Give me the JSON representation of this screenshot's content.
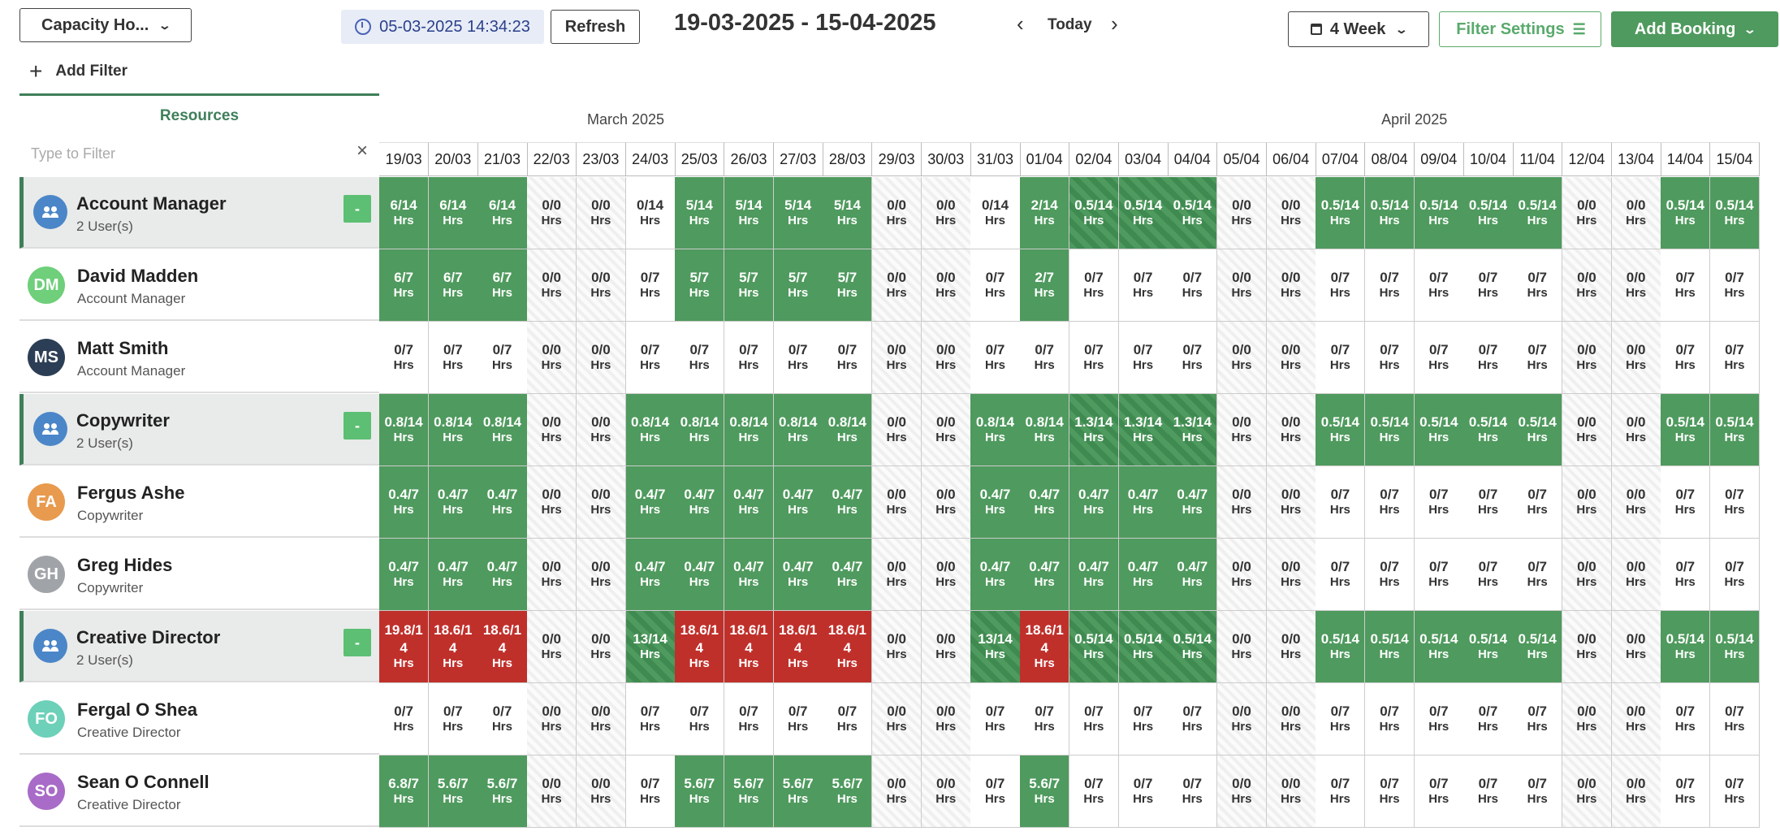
{
  "toolbar": {
    "view_label": "Capacity Ho...",
    "timestamp": "05-03-2025 14:34:23",
    "refresh_label": "Refresh",
    "date_range": "19-03-2025 - 15-04-2025",
    "today_label": "Today",
    "week_label": "4 Week",
    "filter_settings_label": "Filter Settings",
    "add_booking_label": "Add Booking",
    "add_filter_label": "Add Filter"
  },
  "resources": {
    "title": "Resources",
    "filter_placeholder": "Type to Filter"
  },
  "months": [
    "March 2025",
    "April 2025"
  ],
  "days": [
    "19/03",
    "20/03",
    "21/03",
    "22/03",
    "23/03",
    "24/03",
    "25/03",
    "26/03",
    "27/03",
    "28/03",
    "29/03",
    "30/03",
    "31/03",
    "01/04",
    "02/04",
    "03/04",
    "04/04",
    "05/04",
    "06/04",
    "07/04",
    "08/04",
    "09/04",
    "10/04",
    "11/04",
    "12/04",
    "13/04",
    "14/04",
    "15/04"
  ],
  "weekend_days": [
    "22/03",
    "23/03",
    "29/03",
    "30/03",
    "05/04",
    "06/04",
    "12/04",
    "13/04"
  ],
  "unit": "Hrs",
  "rows": [
    {
      "type": "group",
      "name": "Account Manager",
      "sub": "2 User(s)",
      "toggle": "-",
      "cells": [
        [
          "6/14",
          "green"
        ],
        [
          "6/14",
          "green"
        ],
        [
          "6/14",
          "green"
        ],
        [
          "0/0",
          "wk"
        ],
        [
          "0/0",
          "wk"
        ],
        [
          "0/14",
          "white"
        ],
        [
          "5/14",
          "green"
        ],
        [
          "5/14",
          "green"
        ],
        [
          "5/14",
          "green"
        ],
        [
          "5/14",
          "green"
        ],
        [
          "0/0",
          "wk"
        ],
        [
          "0/0",
          "wk"
        ],
        [
          "0/14",
          "white"
        ],
        [
          "2/14",
          "green"
        ],
        [
          "0.5/14",
          "gstripe"
        ],
        [
          "0.5/14",
          "gstripe"
        ],
        [
          "0.5/14",
          "gstripe"
        ],
        [
          "0/0",
          "wk"
        ],
        [
          "0/0",
          "wk"
        ],
        [
          "0.5/14",
          "green"
        ],
        [
          "0.5/14",
          "green"
        ],
        [
          "0.5/14",
          "green"
        ],
        [
          "0.5/14",
          "green"
        ],
        [
          "0.5/14",
          "green"
        ],
        [
          "0/0",
          "wk"
        ],
        [
          "0/0",
          "wk"
        ],
        [
          "0.5/14",
          "green"
        ],
        [
          "0.5/14",
          "green"
        ]
      ]
    },
    {
      "type": "user",
      "initials": "DM",
      "color": "#6fcf7a",
      "name": "David Madden",
      "sub": "Account Manager",
      "cells": [
        [
          "6/7",
          "green"
        ],
        [
          "6/7",
          "green"
        ],
        [
          "6/7",
          "green"
        ],
        [
          "0/0",
          "wk"
        ],
        [
          "0/0",
          "wk"
        ],
        [
          "0/7",
          "white"
        ],
        [
          "5/7",
          "green"
        ],
        [
          "5/7",
          "green"
        ],
        [
          "5/7",
          "green"
        ],
        [
          "5/7",
          "green"
        ],
        [
          "0/0",
          "wk"
        ],
        [
          "0/0",
          "wk"
        ],
        [
          "0/7",
          "white"
        ],
        [
          "2/7",
          "green"
        ],
        [
          "0/7",
          "white"
        ],
        [
          "0/7",
          "white"
        ],
        [
          "0/7",
          "white"
        ],
        [
          "0/0",
          "wk"
        ],
        [
          "0/0",
          "wk"
        ],
        [
          "0/7",
          "white"
        ],
        [
          "0/7",
          "white"
        ],
        [
          "0/7",
          "white"
        ],
        [
          "0/7",
          "white"
        ],
        [
          "0/7",
          "white"
        ],
        [
          "0/0",
          "wk"
        ],
        [
          "0/0",
          "wk"
        ],
        [
          "0/7",
          "white"
        ],
        [
          "0/7",
          "white"
        ]
      ]
    },
    {
      "type": "user",
      "initials": "MS",
      "color": "#2c3e55",
      "name": "Matt Smith",
      "sub": "Account Manager",
      "cells": [
        [
          "0/7",
          "white"
        ],
        [
          "0/7",
          "white"
        ],
        [
          "0/7",
          "white"
        ],
        [
          "0/0",
          "wk"
        ],
        [
          "0/0",
          "wk"
        ],
        [
          "0/7",
          "white"
        ],
        [
          "0/7",
          "white"
        ],
        [
          "0/7",
          "white"
        ],
        [
          "0/7",
          "white"
        ],
        [
          "0/7",
          "white"
        ],
        [
          "0/0",
          "wk"
        ],
        [
          "0/0",
          "wk"
        ],
        [
          "0/7",
          "white"
        ],
        [
          "0/7",
          "white"
        ],
        [
          "0/7",
          "white"
        ],
        [
          "0/7",
          "white"
        ],
        [
          "0/7",
          "white"
        ],
        [
          "0/0",
          "wk"
        ],
        [
          "0/0",
          "wk"
        ],
        [
          "0/7",
          "white"
        ],
        [
          "0/7",
          "white"
        ],
        [
          "0/7",
          "white"
        ],
        [
          "0/7",
          "white"
        ],
        [
          "0/7",
          "white"
        ],
        [
          "0/0",
          "wk"
        ],
        [
          "0/0",
          "wk"
        ],
        [
          "0/7",
          "white"
        ],
        [
          "0/7",
          "white"
        ]
      ]
    },
    {
      "type": "group",
      "name": "Copywriter",
      "sub": "2 User(s)",
      "toggle": "-",
      "cells": [
        [
          "0.8/14",
          "green"
        ],
        [
          "0.8/14",
          "green"
        ],
        [
          "0.8/14",
          "green"
        ],
        [
          "0/0",
          "wk"
        ],
        [
          "0/0",
          "wk"
        ],
        [
          "0.8/14",
          "green"
        ],
        [
          "0.8/14",
          "green"
        ],
        [
          "0.8/14",
          "green"
        ],
        [
          "0.8/14",
          "green"
        ],
        [
          "0.8/14",
          "green"
        ],
        [
          "0/0",
          "wk"
        ],
        [
          "0/0",
          "wk"
        ],
        [
          "0.8/14",
          "green"
        ],
        [
          "0.8/14",
          "green"
        ],
        [
          "1.3/14",
          "gstripe"
        ],
        [
          "1.3/14",
          "gstripe"
        ],
        [
          "1.3/14",
          "gstripe"
        ],
        [
          "0/0",
          "wk"
        ],
        [
          "0/0",
          "wk"
        ],
        [
          "0.5/14",
          "green"
        ],
        [
          "0.5/14",
          "green"
        ],
        [
          "0.5/14",
          "green"
        ],
        [
          "0.5/14",
          "green"
        ],
        [
          "0.5/14",
          "green"
        ],
        [
          "0/0",
          "wk"
        ],
        [
          "0/0",
          "wk"
        ],
        [
          "0.5/14",
          "green"
        ],
        [
          "0.5/14",
          "green"
        ]
      ]
    },
    {
      "type": "user",
      "initials": "FA",
      "color": "#e89a4e",
      "name": "Fergus Ashe",
      "sub": "Copywriter",
      "cells": [
        [
          "0.4/7",
          "green"
        ],
        [
          "0.4/7",
          "green"
        ],
        [
          "0.4/7",
          "green"
        ],
        [
          "0/0",
          "wk"
        ],
        [
          "0/0",
          "wk"
        ],
        [
          "0.4/7",
          "green"
        ],
        [
          "0.4/7",
          "green"
        ],
        [
          "0.4/7",
          "green"
        ],
        [
          "0.4/7",
          "green"
        ],
        [
          "0.4/7",
          "green"
        ],
        [
          "0/0",
          "wk"
        ],
        [
          "0/0",
          "wk"
        ],
        [
          "0.4/7",
          "green"
        ],
        [
          "0.4/7",
          "green"
        ],
        [
          "0.4/7",
          "green"
        ],
        [
          "0.4/7",
          "green"
        ],
        [
          "0.4/7",
          "green"
        ],
        [
          "0/0",
          "wk"
        ],
        [
          "0/0",
          "wk"
        ],
        [
          "0/7",
          "white"
        ],
        [
          "0/7",
          "white"
        ],
        [
          "0/7",
          "white"
        ],
        [
          "0/7",
          "white"
        ],
        [
          "0/7",
          "white"
        ],
        [
          "0/0",
          "wk"
        ],
        [
          "0/0",
          "wk"
        ],
        [
          "0/7",
          "white"
        ],
        [
          "0/7",
          "white"
        ]
      ]
    },
    {
      "type": "user",
      "initials": "GH",
      "color": "#a0a4a8",
      "name": "Greg Hides",
      "sub": "Copywriter",
      "cells": [
        [
          "0.4/7",
          "green"
        ],
        [
          "0.4/7",
          "green"
        ],
        [
          "0.4/7",
          "green"
        ],
        [
          "0/0",
          "wk"
        ],
        [
          "0/0",
          "wk"
        ],
        [
          "0.4/7",
          "green"
        ],
        [
          "0.4/7",
          "green"
        ],
        [
          "0.4/7",
          "green"
        ],
        [
          "0.4/7",
          "green"
        ],
        [
          "0.4/7",
          "green"
        ],
        [
          "0/0",
          "wk"
        ],
        [
          "0/0",
          "wk"
        ],
        [
          "0.4/7",
          "green"
        ],
        [
          "0.4/7",
          "green"
        ],
        [
          "0.4/7",
          "green"
        ],
        [
          "0.4/7",
          "green"
        ],
        [
          "0.4/7",
          "green"
        ],
        [
          "0/0",
          "wk"
        ],
        [
          "0/0",
          "wk"
        ],
        [
          "0/7",
          "white"
        ],
        [
          "0/7",
          "white"
        ],
        [
          "0/7",
          "white"
        ],
        [
          "0/7",
          "white"
        ],
        [
          "0/7",
          "white"
        ],
        [
          "0/0",
          "wk"
        ],
        [
          "0/0",
          "wk"
        ],
        [
          "0/7",
          "white"
        ],
        [
          "0/7",
          "white"
        ]
      ]
    },
    {
      "type": "group",
      "name": "Creative Director",
      "sub": "2 User(s)",
      "toggle": "-",
      "cells": [
        [
          "19.8/14",
          "red"
        ],
        [
          "18.6/14",
          "red"
        ],
        [
          "18.6/14",
          "red"
        ],
        [
          "0/0",
          "wk"
        ],
        [
          "0/0",
          "wk"
        ],
        [
          "13/14",
          "gstripe"
        ],
        [
          "18.6/14",
          "red"
        ],
        [
          "18.6/14",
          "red"
        ],
        [
          "18.6/14",
          "red"
        ],
        [
          "18.6/14",
          "red"
        ],
        [
          "0/0",
          "wk"
        ],
        [
          "0/0",
          "wk"
        ],
        [
          "13/14",
          "gstripe"
        ],
        [
          "18.6/14",
          "red"
        ],
        [
          "0.5/14",
          "gstripe"
        ],
        [
          "0.5/14",
          "gstripe"
        ],
        [
          "0.5/14",
          "gstripe"
        ],
        [
          "0/0",
          "wk"
        ],
        [
          "0/0",
          "wk"
        ],
        [
          "0.5/14",
          "green"
        ],
        [
          "0.5/14",
          "green"
        ],
        [
          "0.5/14",
          "green"
        ],
        [
          "0.5/14",
          "green"
        ],
        [
          "0.5/14",
          "green"
        ],
        [
          "0/0",
          "wk"
        ],
        [
          "0/0",
          "wk"
        ],
        [
          "0.5/14",
          "green"
        ],
        [
          "0.5/14",
          "green"
        ]
      ]
    },
    {
      "type": "user",
      "initials": "FO",
      "color": "#6dd0b8",
      "name": "Fergal O Shea",
      "sub": "Creative Director",
      "cells": [
        [
          "0/7",
          "white"
        ],
        [
          "0/7",
          "white"
        ],
        [
          "0/7",
          "white"
        ],
        [
          "0/0",
          "wk"
        ],
        [
          "0/0",
          "wk"
        ],
        [
          "0/7",
          "white"
        ],
        [
          "0/7",
          "white"
        ],
        [
          "0/7",
          "white"
        ],
        [
          "0/7",
          "white"
        ],
        [
          "0/7",
          "white"
        ],
        [
          "0/0",
          "wk"
        ],
        [
          "0/0",
          "wk"
        ],
        [
          "0/7",
          "white"
        ],
        [
          "0/7",
          "white"
        ],
        [
          "0/7",
          "white"
        ],
        [
          "0/7",
          "white"
        ],
        [
          "0/7",
          "white"
        ],
        [
          "0/0",
          "wk"
        ],
        [
          "0/0",
          "wk"
        ],
        [
          "0/7",
          "white"
        ],
        [
          "0/7",
          "white"
        ],
        [
          "0/7",
          "white"
        ],
        [
          "0/7",
          "white"
        ],
        [
          "0/7",
          "white"
        ],
        [
          "0/0",
          "wk"
        ],
        [
          "0/0",
          "wk"
        ],
        [
          "0/7",
          "white"
        ],
        [
          "0/7",
          "white"
        ]
      ]
    },
    {
      "type": "user",
      "initials": "SO",
      "color": "#a86bc7",
      "name": "Sean O Connell",
      "sub": "Creative Director",
      "cells": [
        [
          "6.8/7",
          "green"
        ],
        [
          "5.6/7",
          "green"
        ],
        [
          "5.6/7",
          "green"
        ],
        [
          "0/0",
          "wk"
        ],
        [
          "0/0",
          "wk"
        ],
        [
          "0/7",
          "white"
        ],
        [
          "5.6/7",
          "green"
        ],
        [
          "5.6/7",
          "green"
        ],
        [
          "5.6/7",
          "green"
        ],
        [
          "5.6/7",
          "green"
        ],
        [
          "0/0",
          "wk"
        ],
        [
          "0/0",
          "wk"
        ],
        [
          "0/7",
          "white"
        ],
        [
          "5.6/7",
          "green"
        ],
        [
          "0/7",
          "white"
        ],
        [
          "0/7",
          "white"
        ],
        [
          "0/7",
          "white"
        ],
        [
          "0/0",
          "wk"
        ],
        [
          "0/0",
          "wk"
        ],
        [
          "0/7",
          "white"
        ],
        [
          "0/7",
          "white"
        ],
        [
          "0/7",
          "white"
        ],
        [
          "0/7",
          "white"
        ],
        [
          "0/7",
          "white"
        ],
        [
          "0/0",
          "wk"
        ],
        [
          "0/0",
          "wk"
        ],
        [
          "0/7",
          "white"
        ],
        [
          "0/7",
          "white"
        ]
      ]
    }
  ],
  "colors": {
    "accent_green": "#4f9a5e",
    "over_red": "#c0302b",
    "header_green": "#3f7f5a",
    "timestamp_bg": "#e7ecf6"
  }
}
